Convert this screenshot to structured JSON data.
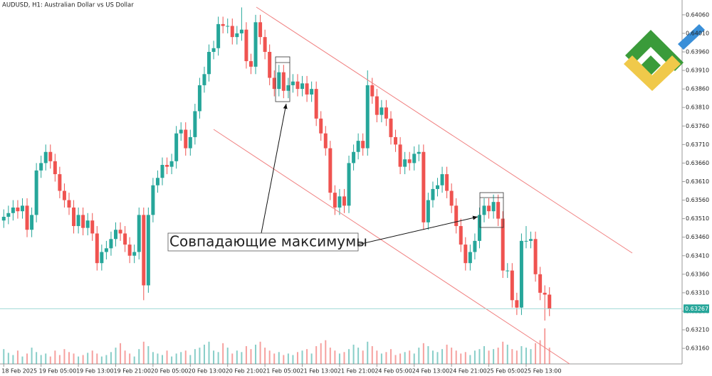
{
  "chart_data": {
    "type": "candlestick",
    "title": "AUDUSD, H1:  Australian Dollar vs US Dollar",
    "annotation": "Совпадающие максимумы",
    "last_price": 0.63267,
    "up_color": "#26a69a",
    "down_color": "#ef5350",
    "ylim": [
      0.63118,
      0.641
    ],
    "yticks": [
      {
        "value": 0.6406,
        "label": "0.64060"
      },
      {
        "value": 0.6401,
        "label": "0.64010"
      },
      {
        "value": 0.6396,
        "label": "0.63960"
      },
      {
        "value": 0.6391,
        "label": "0.63910"
      },
      {
        "value": 0.6386,
        "label": "0.63860"
      },
      {
        "value": 0.6381,
        "label": "0.63810"
      },
      {
        "value": 0.6376,
        "label": "0.63760"
      },
      {
        "value": 0.6371,
        "label": "0.63710"
      },
      {
        "value": 0.6366,
        "label": "0.63660"
      },
      {
        "value": 0.6361,
        "label": "0.63610"
      },
      {
        "value": 0.6356,
        "label": "0.63560"
      },
      {
        "value": 0.6351,
        "label": "0.63510"
      },
      {
        "value": 0.6346,
        "label": "0.63460"
      },
      {
        "value": 0.6341,
        "label": "0.63410"
      },
      {
        "value": 0.6336,
        "label": "0.63360"
      },
      {
        "value": 0.6331,
        "label": "0.63310"
      },
      {
        "value": 0.6326,
        "label": "0.63260"
      },
      {
        "value": 0.6321,
        "label": "0.63210"
      },
      {
        "value": 0.6316,
        "label": "0.63160"
      }
    ],
    "categories": [
      "18 Feb 2025",
      null,
      null,
      null,
      null,
      null,
      null,
      null,
      "19 Feb 05:00",
      null,
      null,
      null,
      null,
      null,
      null,
      null,
      "19 Feb 13:00",
      null,
      null,
      null,
      null,
      null,
      null,
      null,
      "19 Feb 21:00",
      null,
      null,
      null,
      null,
      null,
      null,
      null,
      "20 Feb 05:00",
      null,
      null,
      null,
      null,
      null,
      null,
      null,
      "20 Feb 13:00",
      null,
      null,
      null,
      null,
      null,
      null,
      null,
      "20 Feb 21:00",
      null,
      null,
      null,
      null,
      null,
      null,
      null,
      "21 Feb 05:00",
      null,
      null,
      null,
      null,
      null,
      null,
      null,
      "21 Feb 13:00",
      null,
      null,
      null,
      null,
      null,
      null,
      null,
      "21 Feb 21:00",
      null,
      null,
      null,
      null,
      null,
      null,
      null,
      "24 Feb 05:00",
      null,
      null,
      null,
      null,
      null,
      null,
      null,
      "24 Feb 13:00",
      null,
      null,
      null,
      null,
      null,
      null,
      null,
      "24 Feb 21:00",
      null,
      null,
      null,
      null,
      null,
      null,
      null,
      "25 Feb 05:00",
      null,
      null,
      null,
      null,
      null,
      null,
      null,
      "25 Feb 13:00",
      null,
      null,
      null,
      null,
      null
    ],
    "open": [
      0.63505,
      0.63515,
      0.63525,
      0.6354,
      0.6353,
      0.63545,
      0.6348,
      0.6352,
      0.6364,
      0.6366,
      0.6369,
      0.63665,
      0.6363,
      0.63585,
      0.6356,
      0.6354,
      0.6349,
      0.6352,
      0.63485,
      0.63505,
      0.6347,
      0.6339,
      0.6342,
      0.6343,
      0.63455,
      0.6348,
      0.6347,
      0.6344,
      0.6341,
      0.6342,
      0.6352,
      0.6333,
      0.6352,
      0.636,
      0.6362,
      0.63655,
      0.6365,
      0.63665,
      0.6374,
      0.6375,
      0.637,
      0.6373,
      0.638,
      0.6387,
      0.639,
      0.6396,
      0.6397,
      0.64035,
      0.6403,
      0.6403,
      0.64,
      0.6401,
      0.6402,
      0.63935,
      0.6392,
      0.6404,
      0.64,
      0.6396,
      0.6389,
      0.6386,
      0.63905,
      0.63855,
      0.6387,
      0.6388,
      0.6386,
      0.63875,
      0.63845,
      0.6386,
      0.6378,
      0.6374,
      0.637,
      0.6358,
      0.6354,
      0.6357,
      0.63545,
      0.6366,
      0.6369,
      0.6372,
      0.637,
      0.6387,
      0.6384,
      0.6379,
      0.6381,
      0.6378,
      0.6373,
      0.6371,
      0.6365,
      0.6367,
      0.6366,
      0.63685,
      0.6369,
      0.635,
      0.6356,
      0.6359,
      0.636,
      0.6363,
      0.63585,
      0.63545,
      0.6349,
      0.6344,
      0.6339,
      0.6342,
      0.6345,
      0.6352,
      0.63545,
      0.6353,
      0.63555,
      0.6351,
      0.6337,
      0.6337,
      0.6329,
      0.6327,
      0.6345,
      0.6345,
      0.63455,
      0.6336,
      0.6331,
      0.63305
    ],
    "high": [
      0.63535,
      0.63545,
      0.6356,
      0.6356,
      0.63565,
      0.63565,
      0.6354,
      0.6366,
      0.6368,
      0.6371,
      0.6371,
      0.63685,
      0.6365,
      0.63605,
      0.6358,
      0.6356,
      0.6354,
      0.6354,
      0.63525,
      0.63525,
      0.6349,
      0.6344,
      0.6345,
      0.63475,
      0.635,
      0.635,
      0.6349,
      0.6346,
      0.6344,
      0.6354,
      0.6354,
      0.6354,
      0.6362,
      0.6364,
      0.63675,
      0.63675,
      0.63685,
      0.6376,
      0.6377,
      0.6377,
      0.6375,
      0.6382,
      0.6389,
      0.6392,
      0.6398,
      0.6399,
      0.64055,
      0.64055,
      0.6405,
      0.6405,
      0.6403,
      0.6408,
      0.6404,
      0.63955,
      0.6406,
      0.6406,
      0.6402,
      0.6398,
      0.6391,
      0.63925,
      0.63925,
      0.6389,
      0.639,
      0.639,
      0.63895,
      0.63895,
      0.6388,
      0.6388,
      0.638,
      0.6376,
      0.6372,
      0.636,
      0.6359,
      0.6359,
      0.6368,
      0.6371,
      0.6374,
      0.6374,
      0.6391,
      0.6389,
      0.6386,
      0.6383,
      0.6383,
      0.638,
      0.6375,
      0.6373,
      0.6369,
      0.6369,
      0.63705,
      0.6371,
      0.6371,
      0.6358,
      0.6361,
      0.6362,
      0.6365,
      0.6365,
      0.63605,
      0.63565,
      0.6351,
      0.6346,
      0.6344,
      0.6347,
      0.6354,
      0.63565,
      0.63565,
      0.63575,
      0.63575,
      0.6353,
      0.6339,
      0.6339,
      0.6331,
      0.6347,
      0.6349,
      0.63475,
      0.63475,
      0.6338,
      0.6333,
      0.63325
    ],
    "low": [
      0.63485,
      0.63495,
      0.63505,
      0.6351,
      0.6351,
      0.6346,
      0.6346,
      0.635,
      0.6362,
      0.6364,
      0.63645,
      0.6361,
      0.63565,
      0.6354,
      0.6352,
      0.6347,
      0.6347,
      0.63465,
      0.63465,
      0.6345,
      0.6337,
      0.6337,
      0.634,
      0.6341,
      0.63435,
      0.6345,
      0.6342,
      0.6339,
      0.6339,
      0.634,
      0.6329,
      0.6331,
      0.635,
      0.6358,
      0.636,
      0.6363,
      0.6363,
      0.63645,
      0.6372,
      0.6368,
      0.6368,
      0.6371,
      0.6378,
      0.6385,
      0.6388,
      0.6394,
      0.6395,
      0.6401,
      0.6401,
      0.6398,
      0.6398,
      0.6399,
      0.63915,
      0.639,
      0.639,
      0.6398,
      0.6394,
      0.6387,
      0.6384,
      0.6384,
      0.63835,
      0.63835,
      0.6385,
      0.6384,
      0.6384,
      0.63825,
      0.63825,
      0.6376,
      0.6372,
      0.6368,
      0.6356,
      0.6352,
      0.6352,
      0.63525,
      0.63525,
      0.6364,
      0.6367,
      0.6368,
      0.6368,
      0.6382,
      0.6377,
      0.6377,
      0.6376,
      0.6371,
      0.6369,
      0.6363,
      0.6363,
      0.6364,
      0.6364,
      0.63665,
      0.6348,
      0.6348,
      0.6354,
      0.6357,
      0.6358,
      0.63565,
      0.63525,
      0.6347,
      0.6342,
      0.6337,
      0.6337,
      0.634,
      0.6343,
      0.635,
      0.6351,
      0.6351,
      0.6349,
      0.6335,
      0.6335,
      0.6327,
      0.6325,
      0.6325,
      0.6343,
      0.6343,
      0.6334,
      0.6329,
      0.63235,
      0.63247
    ],
    "close": [
      0.63515,
      0.63525,
      0.6354,
      0.6353,
      0.63545,
      0.6348,
      0.6352,
      0.6364,
      0.6366,
      0.6369,
      0.63665,
      0.6363,
      0.63585,
      0.6356,
      0.6354,
      0.6349,
      0.6352,
      0.63485,
      0.63505,
      0.6347,
      0.6339,
      0.6342,
      0.6343,
      0.63455,
      0.6348,
      0.6347,
      0.6344,
      0.6341,
      0.6342,
      0.6352,
      0.6333,
      0.6352,
      0.636,
      0.6362,
      0.63655,
      0.6365,
      0.63665,
      0.6374,
      0.6375,
      0.637,
      0.6373,
      0.638,
      0.6387,
      0.639,
      0.6396,
      0.6397,
      0.64035,
      0.6403,
      0.6403,
      0.64,
      0.6401,
      0.6402,
      0.63935,
      0.6392,
      0.6404,
      0.64,
      0.6396,
      0.6389,
      0.6386,
      0.63905,
      0.63855,
      0.6387,
      0.6388,
      0.6386,
      0.63875,
      0.63845,
      0.6386,
      0.6378,
      0.6374,
      0.637,
      0.6358,
      0.6354,
      0.6357,
      0.63545,
      0.6366,
      0.6369,
      0.6372,
      0.637,
      0.6387,
      0.6384,
      0.6379,
      0.6381,
      0.6378,
      0.6373,
      0.6371,
      0.6365,
      0.6367,
      0.6366,
      0.63685,
      0.6369,
      0.635,
      0.6356,
      0.6359,
      0.636,
      0.6363,
      0.63585,
      0.63545,
      0.6349,
      0.6344,
      0.6339,
      0.6342,
      0.6345,
      0.6352,
      0.63545,
      0.6353,
      0.63555,
      0.6351,
      0.6337,
      0.6337,
      0.6329,
      0.6327,
      0.6345,
      0.6345,
      0.63455,
      0.6336,
      0.6331,
      0.63305,
      0.63267
    ],
    "volume": [
      20,
      15,
      12,
      18,
      10,
      14,
      22,
      16,
      12,
      14,
      10,
      18,
      12,
      20,
      16,
      14,
      10,
      12,
      15,
      18,
      14,
      10,
      12,
      16,
      22,
      28,
      18,
      14,
      10,
      20,
      30,
      24,
      16,
      14,
      12,
      18,
      10,
      14,
      16,
      18,
      12,
      20,
      22,
      26,
      30,
      18,
      16,
      28,
      22,
      14,
      18,
      16,
      24,
      20,
      26,
      30,
      22,
      18,
      14,
      16,
      12,
      14,
      12,
      16,
      18,
      20,
      14,
      24,
      28,
      32,
      22,
      18,
      14,
      16,
      20,
      26,
      22,
      18,
      30,
      24,
      18,
      14,
      16,
      20,
      12,
      14,
      16,
      18,
      14,
      22,
      28,
      24,
      18,
      16,
      20,
      26,
      22,
      18,
      14,
      16,
      12,
      18,
      20,
      24,
      18,
      20,
      22,
      30,
      26,
      20,
      18,
      24,
      22,
      20,
      28,
      32,
      48,
      22
    ]
  }
}
